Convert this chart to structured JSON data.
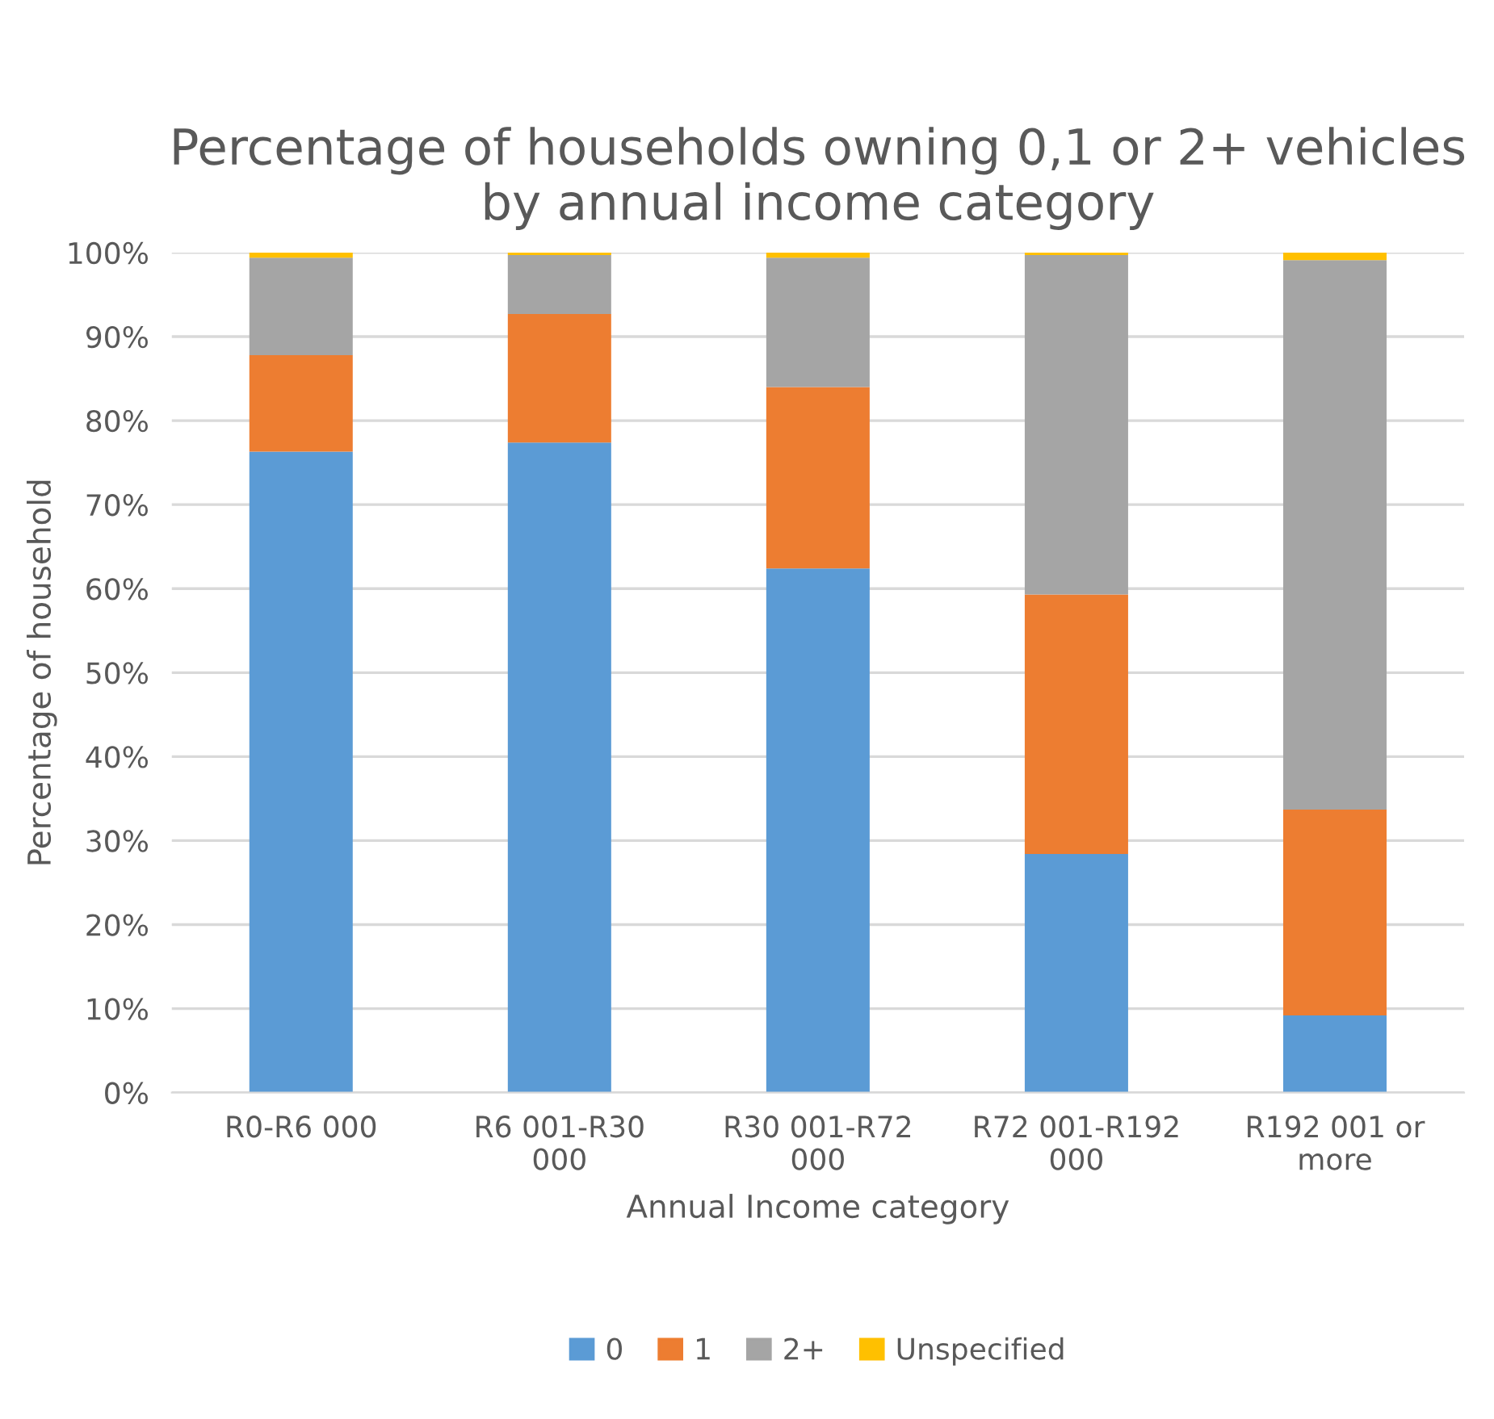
{
  "chart_data": {
    "type": "bar",
    "stacked": true,
    "title": "Percentage of households owning 0,1 or 2+ vehicles by annual income category",
    "xlabel": "Annual Income category",
    "ylabel": "Percentage of household",
    "categories": [
      "R0-R6 000",
      "R6 001-R30 000",
      "R30 001-R72 000",
      "R72 001-R192 000",
      "R192 001 or more"
    ],
    "series": [
      {
        "name": "0",
        "color": "#5b9bd5",
        "values": [
          76.3,
          77.4,
          62.4,
          28.4,
          9.2
        ]
      },
      {
        "name": "1",
        "color": "#ed7d31",
        "values": [
          11.5,
          15.3,
          21.6,
          30.9,
          24.5
        ]
      },
      {
        "name": "2+",
        "color": "#a5a5a5",
        "values": [
          11.6,
          7.0,
          15.4,
          40.4,
          65.4
        ]
      },
      {
        "name": "Unspecified",
        "color": "#ffc000",
        "values": [
          0.6,
          0.3,
          0.6,
          0.3,
          0.9
        ]
      }
    ],
    "ylim": [
      0,
      100
    ],
    "yticks": [
      {
        "value": 0,
        "label": "0%"
      },
      {
        "value": 10,
        "label": "10%"
      },
      {
        "value": 20,
        "label": "20%"
      },
      {
        "value": 30,
        "label": "30%"
      },
      {
        "value": 40,
        "label": "40%"
      },
      {
        "value": 50,
        "label": "50%"
      },
      {
        "value": 60,
        "label": "60%"
      },
      {
        "value": 70,
        "label": "70%"
      },
      {
        "value": 80,
        "label": "80%"
      },
      {
        "value": 90,
        "label": "90%"
      },
      {
        "value": 100,
        "label": "100%"
      }
    ],
    "grid": "y",
    "legend": "bottom"
  }
}
